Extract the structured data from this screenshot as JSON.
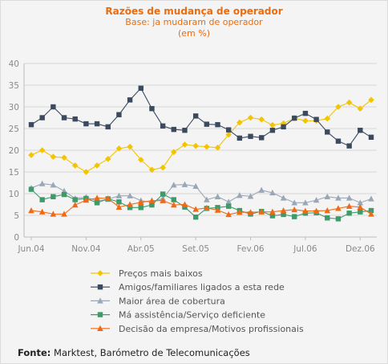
{
  "chart_data": {
    "type": "line",
    "title": "Razões de mudança de operador",
    "subtitle_lines": [
      "Base: ja mudaram de operador",
      "(em %)"
    ],
    "xlabel": "",
    "ylabel": "",
    "ylim": [
      0,
      40
    ],
    "yticks": [
      "0",
      "5",
      "10",
      "15",
      "20",
      "25",
      "30",
      "35",
      "40"
    ],
    "x_tick_labels": [
      "Jun.04",
      "Nov.04",
      "Abr.05",
      "Set.05",
      "Fev.06",
      "Jul.06",
      "Dez.06"
    ],
    "x_tick_positions": [
      0,
      5,
      10,
      15,
      20,
      25,
      30
    ],
    "grid": true,
    "legend_position": "bottom",
    "series": [
      {
        "name": "Preços mais baixos",
        "color": "#f2c500",
        "marker": "diamond",
        "values": [
          18.9,
          20.0,
          18.5,
          18.3,
          16.5,
          15.0,
          16.5,
          18.0,
          20.4,
          20.8,
          17.8,
          15.5,
          16.0,
          19.6,
          21.3,
          21.0,
          20.8,
          20.6,
          23.6,
          26.4,
          27.5,
          27.1,
          25.8,
          26.2,
          27.4,
          26.8,
          26.8,
          27.3,
          30.0,
          31.0,
          29.6,
          31.6
        ]
      },
      {
        "name": "Amigos/familiares ligados a esta rede",
        "color": "#3b4a5f",
        "marker": "square",
        "values": [
          25.9,
          27.5,
          30.0,
          27.5,
          27.2,
          26.1,
          26.1,
          25.4,
          28.2,
          31.6,
          34.3,
          29.6,
          25.6,
          24.8,
          24.6,
          27.9,
          26.0,
          25.9,
          24.7,
          22.8,
          23.2,
          22.9,
          24.6,
          25.4,
          27.4,
          28.5,
          27.1,
          24.2,
          22.1,
          21.0,
          24.6,
          23.0
        ]
      },
      {
        "name": "Maior área de cobertura",
        "color": "#9aa7b6",
        "marker": "triangle",
        "values": [
          11.3,
          12.3,
          12.0,
          10.6,
          8.9,
          9.2,
          8.3,
          8.7,
          9.5,
          9.5,
          8.4,
          8.0,
          8.9,
          12.0,
          12.1,
          11.7,
          8.6,
          9.3,
          8.1,
          9.6,
          9.4,
          10.8,
          10.2,
          9.0,
          7.9,
          7.9,
          8.5,
          9.3,
          9.0,
          9.0,
          7.9,
          8.8
        ]
      },
      {
        "name": "Má assistência/Serviço deficiente",
        "color": "#3f9a6a",
        "marker": "square",
        "values": [
          11.0,
          8.6,
          9.3,
          9.8,
          8.6,
          8.9,
          7.9,
          8.8,
          8.1,
          6.8,
          6.8,
          7.4,
          9.9,
          8.6,
          6.9,
          4.6,
          6.6,
          6.8,
          7.1,
          6.1,
          5.3,
          5.9,
          4.9,
          5.2,
          4.7,
          5.5,
          5.6,
          4.4,
          4.2,
          5.5,
          5.8,
          6.1
        ]
      },
      {
        "name": "Decisão da empresa/Motivos profissionais",
        "color": "#ee6a14",
        "marker": "triangle",
        "values": [
          6.1,
          5.8,
          5.3,
          5.3,
          7.4,
          8.5,
          9.0,
          8.9,
          6.9,
          7.5,
          8.0,
          8.4,
          8.4,
          7.4,
          7.5,
          6.4,
          6.7,
          6.2,
          5.2,
          5.7,
          5.7,
          5.8,
          5.8,
          6.1,
          6.3,
          6.0,
          6.0,
          6.1,
          6.6,
          7.1,
          6.9,
          5.3
        ]
      }
    ]
  },
  "source": {
    "label": "Fonte:",
    "text": " Marktest, Barómetro de Telecomunicações"
  }
}
